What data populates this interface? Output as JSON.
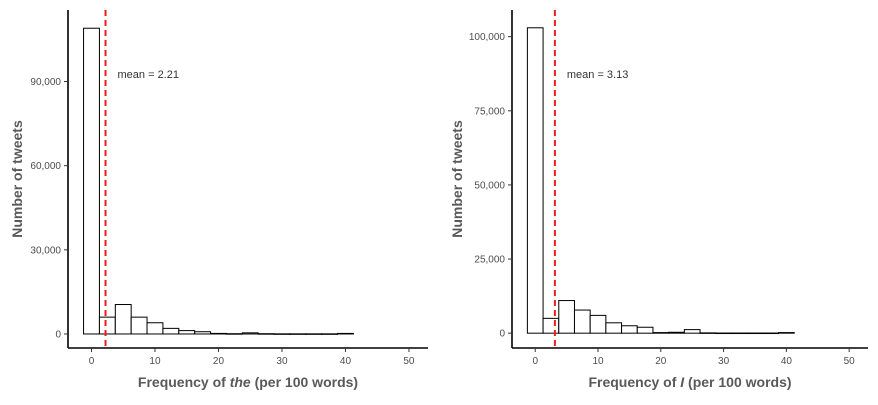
{
  "colors": {
    "bar_fill": "#ffffff",
    "bar_stroke": "#000000",
    "mean_line": "#ee1c1c",
    "text": "#4d4d4d",
    "title": "#595959"
  },
  "chart_data": [
    {
      "type": "bar",
      "histogram": true,
      "bin_width": 2.5,
      "bins": [
        {
          "x0": -1.25,
          "x1": 1.25,
          "count": 109000
        },
        {
          "x0": 1.25,
          "x1": 3.75,
          "count": 6000
        },
        {
          "x0": 3.75,
          "x1": 6.25,
          "count": 10500
        },
        {
          "x0": 6.25,
          "x1": 8.75,
          "count": 6000
        },
        {
          "x0": 8.75,
          "x1": 11.25,
          "count": 4000
        },
        {
          "x0": 11.25,
          "x1": 13.75,
          "count": 2000
        },
        {
          "x0": 13.75,
          "x1": 16.25,
          "count": 1200
        },
        {
          "x0": 16.25,
          "x1": 18.75,
          "count": 800
        },
        {
          "x0": 18.75,
          "x1": 21.25,
          "count": 200
        },
        {
          "x0": 21.25,
          "x1": 23.75,
          "count": 100
        },
        {
          "x0": 23.75,
          "x1": 26.25,
          "count": 400
        },
        {
          "x0": 26.25,
          "x1": 28.75,
          "count": 100
        },
        {
          "x0": 28.75,
          "x1": 31.25,
          "count": 50
        },
        {
          "x0": 31.25,
          "x1": 33.75,
          "count": 50
        },
        {
          "x0": 33.75,
          "x1": 36.25,
          "count": 50
        },
        {
          "x0": 36.25,
          "x1": 38.75,
          "count": 50
        },
        {
          "x0": 38.75,
          "x1": 41.25,
          "count": 200
        }
      ],
      "xlim": [
        -3.7,
        53
      ],
      "ylim": [
        -5000,
        115500
      ],
      "xticks": [
        0,
        10,
        20,
        30,
        40,
        50
      ],
      "xtick_labels": [
        "0",
        "10",
        "20",
        "30",
        "40",
        "50"
      ],
      "yticks": [
        0,
        30000,
        60000,
        90000
      ],
      "ytick_labels": [
        "0",
        "30,000",
        "60,000",
        "90,000"
      ],
      "xlabel_pre": "Frequency of ",
      "xlabel_em": "the",
      "xlabel_post": " (per 100 words)",
      "ylabel": "Number of tweets",
      "mean": 2.21,
      "mean_label": "mean = 2.21",
      "grid": false
    },
    {
      "type": "bar",
      "histogram": true,
      "bin_width": 2.5,
      "bins": [
        {
          "x0": -1.25,
          "x1": 1.25,
          "count": 103000
        },
        {
          "x0": 1.25,
          "x1": 3.75,
          "count": 5000
        },
        {
          "x0": 3.75,
          "x1": 6.25,
          "count": 11000
        },
        {
          "x0": 6.25,
          "x1": 8.75,
          "count": 7800
        },
        {
          "x0": 8.75,
          "x1": 11.25,
          "count": 6000
        },
        {
          "x0": 11.25,
          "x1": 13.75,
          "count": 3500
        },
        {
          "x0": 13.75,
          "x1": 16.25,
          "count": 2500
        },
        {
          "x0": 16.25,
          "x1": 18.75,
          "count": 2000
        },
        {
          "x0": 18.75,
          "x1": 21.25,
          "count": 200
        },
        {
          "x0": 21.25,
          "x1": 23.75,
          "count": 300
        },
        {
          "x0": 23.75,
          "x1": 26.25,
          "count": 1200
        },
        {
          "x0": 26.25,
          "x1": 28.75,
          "count": 100
        },
        {
          "x0": 28.75,
          "x1": 31.25,
          "count": 50
        },
        {
          "x0": 31.25,
          "x1": 33.75,
          "count": 50
        },
        {
          "x0": 33.75,
          "x1": 36.25,
          "count": 50
        },
        {
          "x0": 36.25,
          "x1": 38.75,
          "count": 50
        },
        {
          "x0": 38.75,
          "x1": 41.25,
          "count": 200
        }
      ],
      "xlim": [
        -3.7,
        53
      ],
      "ylim": [
        -5000,
        109000
      ],
      "xticks": [
        0,
        10,
        20,
        30,
        40,
        50
      ],
      "xtick_labels": [
        "0",
        "10",
        "20",
        "30",
        "40",
        "50"
      ],
      "yticks": [
        0,
        25000,
        50000,
        75000,
        100000
      ],
      "ytick_labels": [
        "0",
        "25,000",
        "50,000",
        "75,000",
        "100,000"
      ],
      "xlabel_pre": "Frequency of ",
      "xlabel_em": "I",
      "xlabel_post": " (per 100 words)",
      "ylabel": "Number of tweets",
      "mean": 3.13,
      "mean_label": "mean = 3.13",
      "grid": false
    }
  ]
}
